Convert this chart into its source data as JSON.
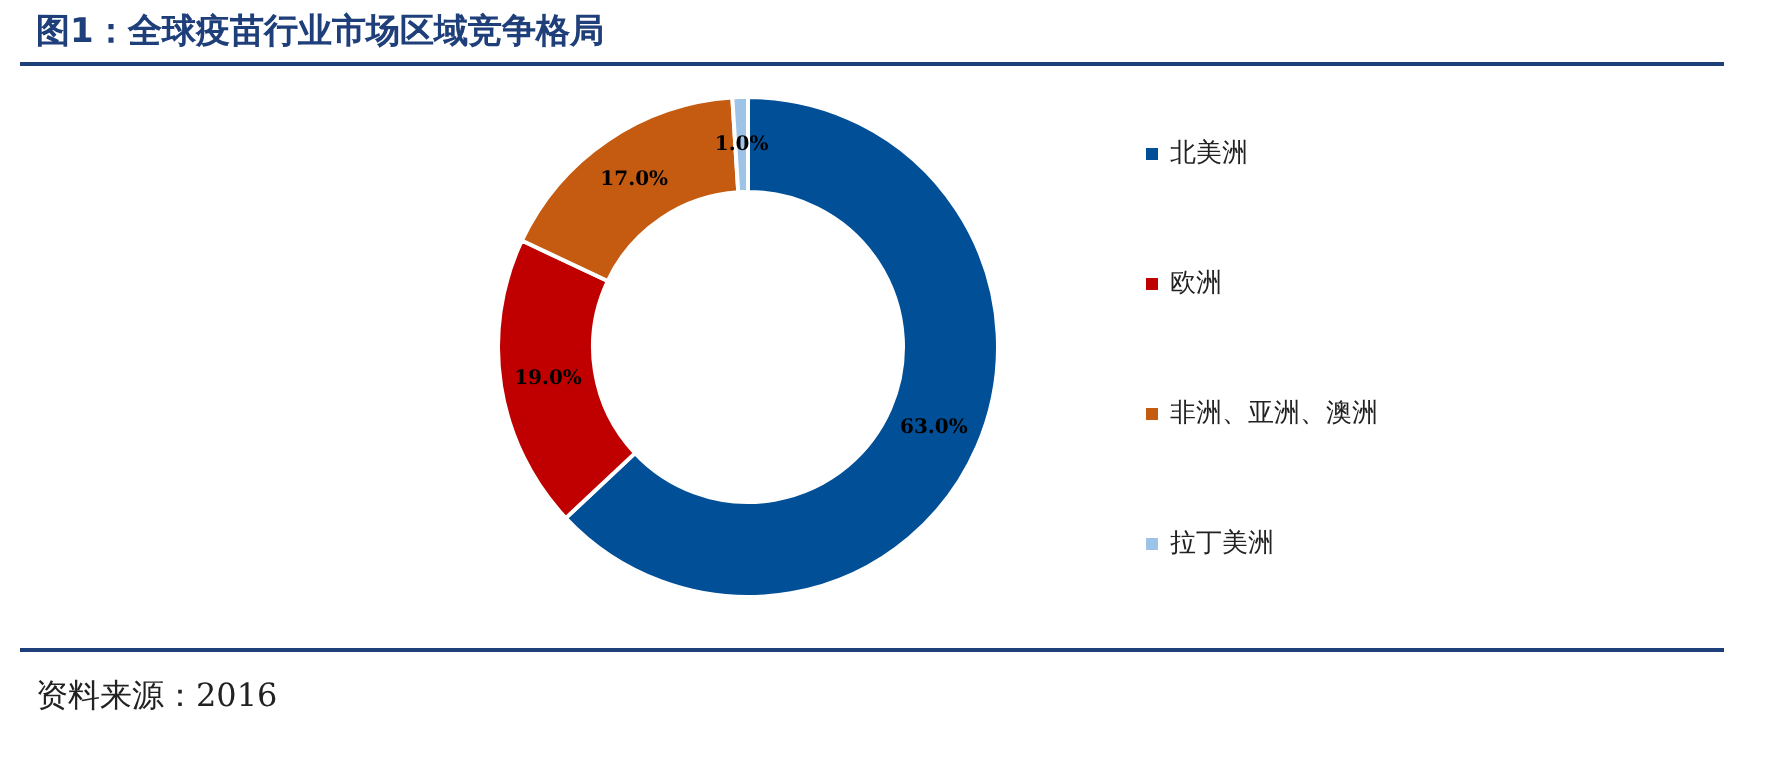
{
  "chart_data": {
    "type": "donut",
    "title": "图1：全球疫苗行业市场区域竞争格局",
    "categories": [
      "北美洲",
      "欧洲",
      "非洲、亚洲、澳洲",
      "拉丁美洲"
    ],
    "values": [
      63,
      19,
      17,
      1
    ],
    "colors": [
      "#004f97",
      "#c00000",
      "#c55a11",
      "#9dc3e6"
    ],
    "value_labels": [
      "63.0%",
      "19.0%",
      "17.0%",
      "1.0%"
    ],
    "legend": "right",
    "annotations": [
      "资料来源：2016"
    ]
  }
}
